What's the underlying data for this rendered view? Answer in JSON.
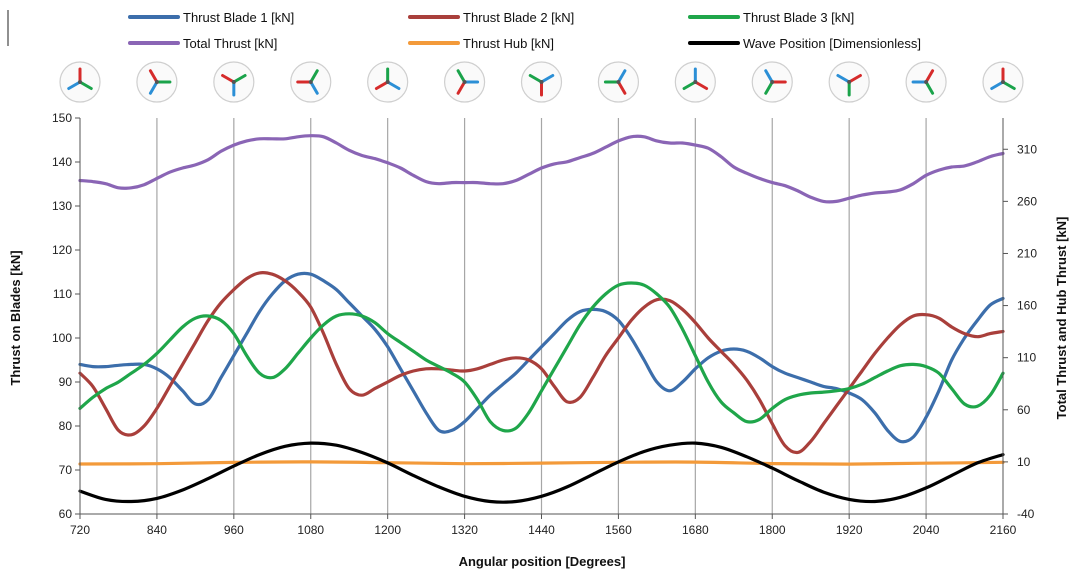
{
  "chart_data": {
    "type": "line",
    "xlabel": "Angular position [Degrees]",
    "ylabel": "Thrust on Blades [kN]",
    "y2label": "Total Thrust and Hub Thrust [kN]",
    "xlim": [
      720,
      2160
    ],
    "ylim": [
      60,
      150
    ],
    "y2lim": [
      -40,
      340
    ],
    "xticks": [
      720,
      840,
      960,
      1080,
      1200,
      1320,
      1440,
      1560,
      1680,
      1800,
      1920,
      2040,
      2160
    ],
    "yticks": [
      60,
      70,
      80,
      90,
      100,
      110,
      120,
      130,
      140,
      150
    ],
    "y2ticks": [
      -40,
      10,
      60,
      110,
      160,
      210,
      260,
      310
    ],
    "grid_vertical": true,
    "legend_position": "top",
    "rotor_icon_positions": [
      720,
      840,
      960,
      1080,
      1200,
      1320,
      1440,
      1560,
      1680,
      1800,
      1920,
      2040,
      2160
    ],
    "series": [
      {
        "name": "Thrust Blade 1 [kN]",
        "color": "#3c6eab",
        "axis": "left",
        "x": [
          720,
          740,
          760,
          780,
          800,
          820,
          840,
          860,
          880,
          900,
          920,
          940,
          960,
          980,
          1000,
          1020,
          1040,
          1060,
          1080,
          1100,
          1120,
          1140,
          1160,
          1180,
          1200,
          1220,
          1240,
          1260,
          1280,
          1300,
          1320,
          1340,
          1360,
          1380,
          1400,
          1420,
          1440,
          1460,
          1480,
          1500,
          1520,
          1540,
          1560,
          1580,
          1600,
          1620,
          1640,
          1660,
          1680,
          1700,
          1720,
          1740,
          1760,
          1780,
          1800,
          1820,
          1840,
          1860,
          1880,
          1900,
          1920,
          1940,
          1960,
          1980,
          2000,
          2020,
          2040,
          2060,
          2080,
          2100,
          2120,
          2140,
          2160
        ],
        "y": [
          94,
          93.5,
          93.5,
          93.8,
          94,
          94,
          93,
          91,
          88,
          85,
          86,
          91,
          96,
          101,
          106,
          110,
          113,
          114.5,
          114.5,
          113,
          111,
          108,
          105,
          102,
          98,
          93,
          88,
          83,
          79,
          79,
          81,
          84,
          87,
          89.5,
          92,
          95,
          98,
          101,
          104,
          106,
          106.5,
          106,
          104,
          100,
          95,
          90,
          88,
          90,
          93,
          95.5,
          97,
          97.5,
          97,
          95.5,
          93.5,
          92,
          91,
          90,
          89,
          88.5,
          87.5,
          86,
          83,
          79,
          76.5,
          77.5,
          82,
          88,
          95,
          100,
          104,
          107.5,
          109
        ]
      },
      {
        "name": "Thrust Blade 2 [kN]",
        "color": "#a93f3b",
        "axis": "left",
        "x": [
          720,
          740,
          760,
          780,
          800,
          820,
          840,
          860,
          880,
          900,
          920,
          940,
          960,
          980,
          1000,
          1020,
          1040,
          1060,
          1080,
          1100,
          1120,
          1140,
          1160,
          1180,
          1200,
          1220,
          1240,
          1260,
          1280,
          1300,
          1320,
          1340,
          1360,
          1380,
          1400,
          1420,
          1440,
          1460,
          1480,
          1500,
          1520,
          1540,
          1560,
          1580,
          1600,
          1620,
          1640,
          1660,
          1680,
          1700,
          1720,
          1740,
          1760,
          1780,
          1800,
          1820,
          1840,
          1860,
          1880,
          1900,
          1920,
          1940,
          1960,
          1980,
          2000,
          2020,
          2040,
          2060,
          2080,
          2100,
          2120,
          2140,
          2160
        ],
        "y": [
          92,
          89,
          84,
          79,
          78,
          80,
          84,
          89,
          94,
          99,
          104,
          108,
          111,
          113.5,
          114.8,
          114.5,
          113,
          110.5,
          107,
          101,
          94,
          88.5,
          87,
          88.5,
          90,
          91.5,
          92.5,
          93,
          93,
          92.7,
          92.5,
          93,
          94,
          95,
          95.5,
          95,
          93,
          89,
          85.5,
          86.5,
          91,
          96,
          100,
          104,
          107,
          108.7,
          108.5,
          106.5,
          103.5,
          100,
          97,
          94,
          90.5,
          86,
          80.5,
          75.5,
          74,
          76.5,
          80.5,
          84.5,
          88.5,
          92.5,
          96.5,
          100,
          103,
          105,
          105.3,
          104.5,
          102.5,
          101,
          100.3,
          101,
          101.5
        ]
      },
      {
        "name": "Thrust Blade 3 [kN]",
        "color": "#1fa64a",
        "axis": "left",
        "x": [
          720,
          740,
          760,
          780,
          800,
          820,
          840,
          860,
          880,
          900,
          920,
          940,
          960,
          980,
          1000,
          1020,
          1040,
          1060,
          1080,
          1100,
          1120,
          1140,
          1160,
          1180,
          1200,
          1220,
          1240,
          1260,
          1280,
          1300,
          1320,
          1340,
          1360,
          1380,
          1400,
          1420,
          1440,
          1460,
          1480,
          1500,
          1520,
          1540,
          1560,
          1580,
          1600,
          1620,
          1640,
          1660,
          1680,
          1700,
          1720,
          1740,
          1760,
          1780,
          1800,
          1820,
          1840,
          1860,
          1880,
          1900,
          1920,
          1940,
          1960,
          1980,
          2000,
          2020,
          2040,
          2060,
          2080,
          2100,
          2120,
          2140,
          2160
        ],
        "y": [
          84,
          86.5,
          88.5,
          90,
          92,
          94,
          96.5,
          99.5,
          102.5,
          104.5,
          105,
          104,
          101,
          96,
          92,
          91,
          93,
          96.5,
          100,
          103,
          105,
          105.5,
          105,
          103.5,
          101,
          99,
          97,
          95,
          93.5,
          92,
          90,
          86,
          81,
          79,
          79.5,
          83,
          88,
          93,
          98,
          103,
          107,
          110,
          112,
          112.5,
          112,
          110,
          107,
          102,
          96,
          90,
          85.5,
          83,
          81,
          81.5,
          84,
          86,
          87,
          87.5,
          87.7,
          88,
          88.5,
          89.5,
          91,
          92.5,
          93.7,
          94,
          93.5,
          92,
          88.5,
          85,
          84.5,
          87,
          92
        ]
      },
      {
        "name": "Total Thrust [kN]",
        "color": "#8a65b5",
        "axis": "right",
        "x": [
          720,
          740,
          760,
          780,
          800,
          820,
          840,
          860,
          880,
          900,
          920,
          940,
          960,
          980,
          1000,
          1020,
          1040,
          1060,
          1080,
          1100,
          1120,
          1140,
          1160,
          1180,
          1200,
          1220,
          1240,
          1260,
          1280,
          1300,
          1320,
          1340,
          1360,
          1380,
          1400,
          1420,
          1440,
          1460,
          1480,
          1500,
          1520,
          1540,
          1560,
          1580,
          1600,
          1620,
          1640,
          1660,
          1680,
          1700,
          1720,
          1740,
          1760,
          1780,
          1800,
          1820,
          1840,
          1860,
          1880,
          1900,
          1920,
          1940,
          1960,
          1980,
          2000,
          2020,
          2040,
          2060,
          2080,
          2100,
          2120,
          2140,
          2160
        ],
        "y": [
          280,
          279,
          277,
          273,
          273,
          276,
          282,
          288,
          292,
          295,
          300,
          308,
          314,
          318,
          320,
          320,
          320,
          322,
          323,
          322,
          316,
          309,
          304,
          301,
          297,
          292,
          285,
          279,
          277,
          278,
          278,
          278,
          277,
          277,
          280,
          286,
          292,
          296,
          298,
          302,
          306,
          312,
          318,
          322,
          322,
          318,
          316,
          316,
          314,
          311,
          303,
          293,
          287,
          282,
          278,
          275,
          270,
          264,
          260,
          260,
          263,
          266,
          268,
          269,
          271,
          277,
          285,
          290,
          293,
          294,
          298,
          303,
          306
        ]
      },
      {
        "name": "Thrust Hub [kN]",
        "color": "#f39a3a",
        "axis": "right",
        "x": [
          720,
          840,
          960,
          1080,
          1200,
          1320,
          1440,
          1560,
          1680,
          1800,
          1920,
          2040,
          2160
        ],
        "y": [
          8,
          8.3,
          9.5,
          10,
          9.2,
          8.3,
          8.8,
          9.6,
          9.8,
          8.4,
          7.9,
          8.7,
          9.6
        ]
      },
      {
        "name": "Wave Position [Dimensionless]",
        "color": "#000000",
        "axis": "right",
        "x": [
          720,
          760,
          800,
          840,
          880,
          920,
          960,
          1000,
          1040,
          1080,
          1120,
          1160,
          1200,
          1240,
          1280,
          1320,
          1360,
          1400,
          1440,
          1480,
          1520,
          1560,
          1600,
          1640,
          1680,
          1720,
          1760,
          1800,
          1840,
          1880,
          1920,
          1960,
          2000,
          2040,
          2080,
          2120,
          2160
        ],
        "y": [
          -18,
          -26,
          -28,
          -25,
          -17,
          -6,
          6,
          17,
          25,
          28,
          26,
          19,
          9,
          -3,
          -14,
          -23,
          -28,
          -28,
          -23,
          -14,
          -2,
          10,
          20,
          26,
          28,
          24,
          15,
          4,
          -8,
          -19,
          -26,
          -28,
          -24,
          -15,
          -3,
          9,
          17
        ]
      }
    ]
  }
}
